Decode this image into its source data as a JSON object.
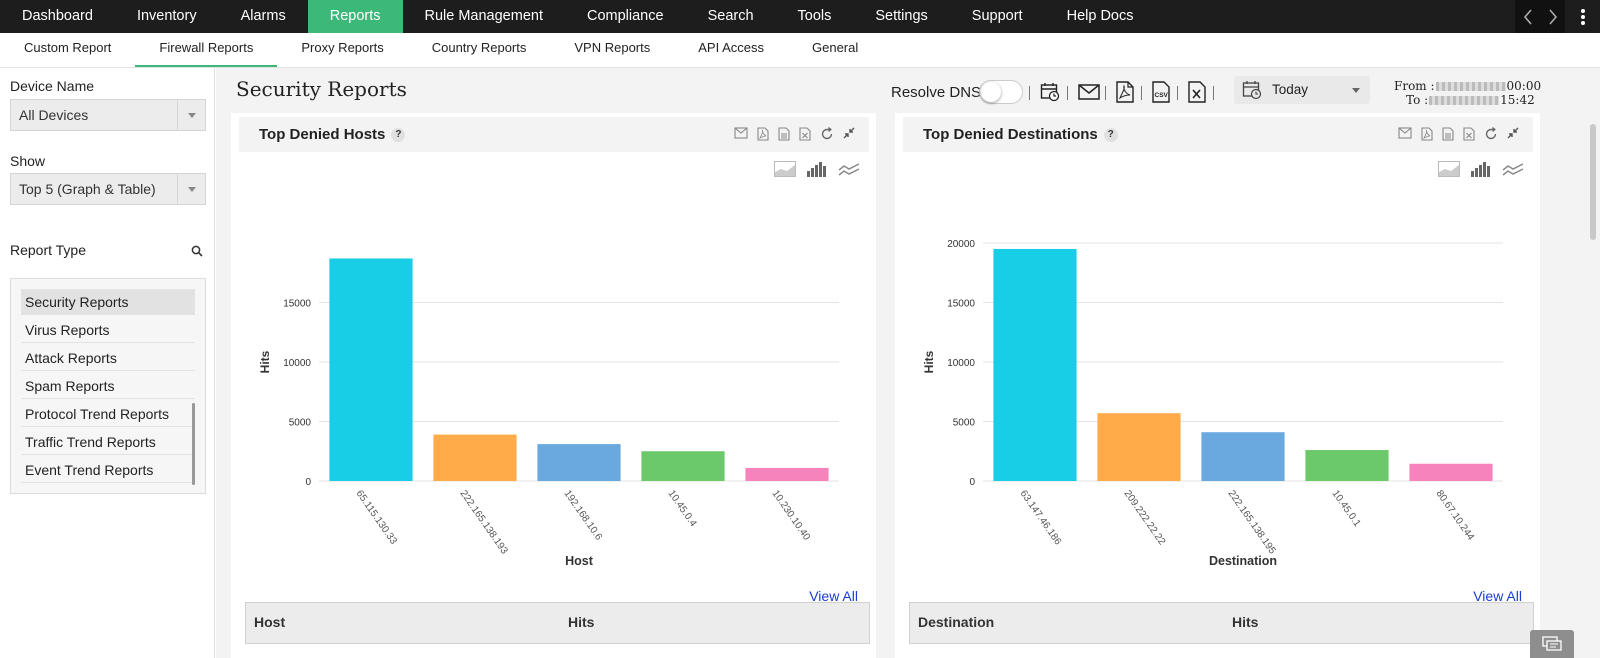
{
  "topnav": {
    "items": [
      "Dashboard",
      "Inventory",
      "Alarms",
      "Reports",
      "Rule Management",
      "Compliance",
      "Search",
      "Tools",
      "Settings",
      "Support",
      "Help Docs"
    ],
    "active": "Reports"
  },
  "subnav": {
    "items": [
      "Custom Report",
      "Firewall Reports",
      "Proxy Reports",
      "Country Reports",
      "VPN Reports",
      "API Access",
      "General"
    ],
    "active": "Firewall Reports"
  },
  "left": {
    "device_label": "Device Name",
    "device_value": "All Devices",
    "show_label": "Show",
    "show_value": "Top 5 (Graph & Table)",
    "report_type_label": "Report Type",
    "report_types": [
      "Security Reports",
      "Virus Reports",
      "Attack Reports",
      "Spam Reports",
      "Protocol Trend Reports",
      "Traffic Trend Reports",
      "Event Trend Reports"
    ],
    "selected_report_type": "Security Reports"
  },
  "main": {
    "title": "Security Reports",
    "resolve_dns_label": "Resolve DNS",
    "resolve_dns_on": false,
    "date_range": "Today",
    "from_label": "From :",
    "from_time": "00:00",
    "to_label": "To :",
    "to_time": "15:42",
    "view_all": "View All"
  },
  "colors": {
    "accent": "#3cb878",
    "series": [
      "#18cde6",
      "#ffab4a",
      "#6aa9e0",
      "#6cc96a",
      "#f783bc"
    ]
  },
  "chart_data": [
    {
      "type": "bar",
      "title": "Top Denied Hosts",
      "xlabel": "Host",
      "ylabel": "Hits",
      "categories": [
        "65.115.130.33",
        "222.165.138.193",
        "192.168.10.6",
        "10.45.0.4",
        "10.230.10.40"
      ],
      "values": [
        18700,
        3900,
        3100,
        2500,
        1100
      ],
      "yticks": [
        0,
        5000,
        10000,
        15000
      ],
      "ylim": [
        0,
        20000
      ],
      "legend": "bottom",
      "table_headers": [
        "Host",
        "Hits"
      ]
    },
    {
      "type": "bar",
      "title": "Top Denied Destinations",
      "xlabel": "Destination",
      "ylabel": "Hits",
      "categories": [
        "63.147.46.186",
        "209.222.22.22",
        "222.165.138.195",
        "10.45.0.1",
        "80.67.10.244"
      ],
      "values": [
        19500,
        5700,
        4100,
        2600,
        1450
      ],
      "yticks": [
        0,
        5000,
        10000,
        15000,
        20000
      ],
      "ylim": [
        0,
        20000
      ],
      "legend": "bottom",
      "table_headers": [
        "Destination",
        "Hits"
      ]
    }
  ]
}
